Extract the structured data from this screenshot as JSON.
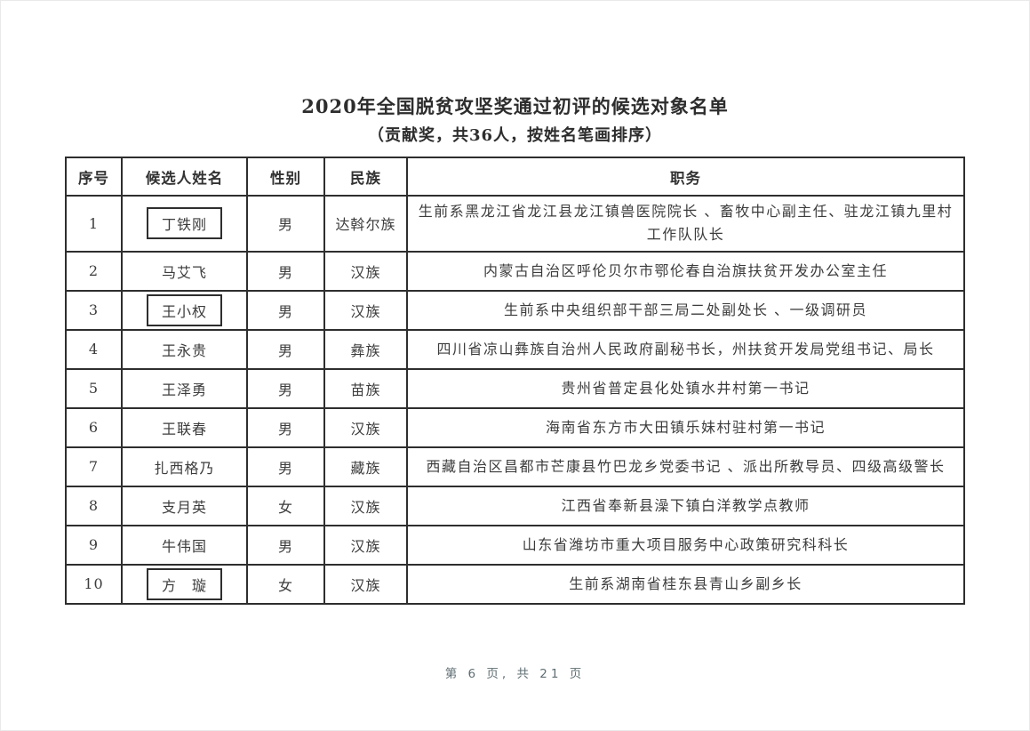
{
  "page": {
    "title": "2020年全国脱贫攻坚奖通过初评的候选对象名单",
    "subtitle": "（贡献奖，共36人，按姓名笔画排序）",
    "footer": "第 6 页, 共 21 页"
  },
  "table": {
    "headers": [
      "序号",
      "候选人姓名",
      "性别",
      "民族",
      "职务"
    ],
    "rows": [
      {
        "no": "1",
        "name": "丁铁刚",
        "boxed": true,
        "gender": "男",
        "ethnicity": "达斡尔族",
        "position": "生前系黑龙江省龙江县龙江镇兽医院院长 、畜牧中心副主任、驻龙江镇九里村工作队队长"
      },
      {
        "no": "2",
        "name": "马艾飞",
        "boxed": false,
        "gender": "男",
        "ethnicity": "汉族",
        "position": "内蒙古自治区呼伦贝尔市鄂伦春自治旗扶贫开发办公室主任"
      },
      {
        "no": "3",
        "name": "王小权",
        "boxed": true,
        "gender": "男",
        "ethnicity": "汉族",
        "position": "生前系中央组织部干部三局二处副处长 、一级调研员"
      },
      {
        "no": "4",
        "name": "王永贵",
        "boxed": false,
        "gender": "男",
        "ethnicity": "彝族",
        "position": "四川省凉山彝族自治州人民政府副秘书长，州扶贫开发局党组书记、局长"
      },
      {
        "no": "5",
        "name": "王泽勇",
        "boxed": false,
        "gender": "男",
        "ethnicity": "苗族",
        "position": "贵州省普定县化处镇水井村第一书记"
      },
      {
        "no": "6",
        "name": "王联春",
        "boxed": false,
        "gender": "男",
        "ethnicity": "汉族",
        "position": "海南省东方市大田镇乐妹村驻村第一书记"
      },
      {
        "no": "7",
        "name": "扎西格乃",
        "boxed": false,
        "gender": "男",
        "ethnicity": "藏族",
        "position": "西藏自治区昌都市芒康县竹巴龙乡党委书记 、派出所教导员、四级高级警长"
      },
      {
        "no": "8",
        "name": "支月英",
        "boxed": false,
        "gender": "女",
        "ethnicity": "汉族",
        "position": "江西省奉新县澡下镇白洋教学点教师"
      },
      {
        "no": "9",
        "name": "牛伟国",
        "boxed": false,
        "gender": "男",
        "ethnicity": "汉族",
        "position": "山东省潍坊市重大项目服务中心政策研究科科长"
      },
      {
        "no": "10",
        "name": "方　璇",
        "boxed": true,
        "gender": "女",
        "ethnicity": "汉族",
        "position": "生前系湖南省桂东县青山乡副乡长"
      }
    ]
  }
}
